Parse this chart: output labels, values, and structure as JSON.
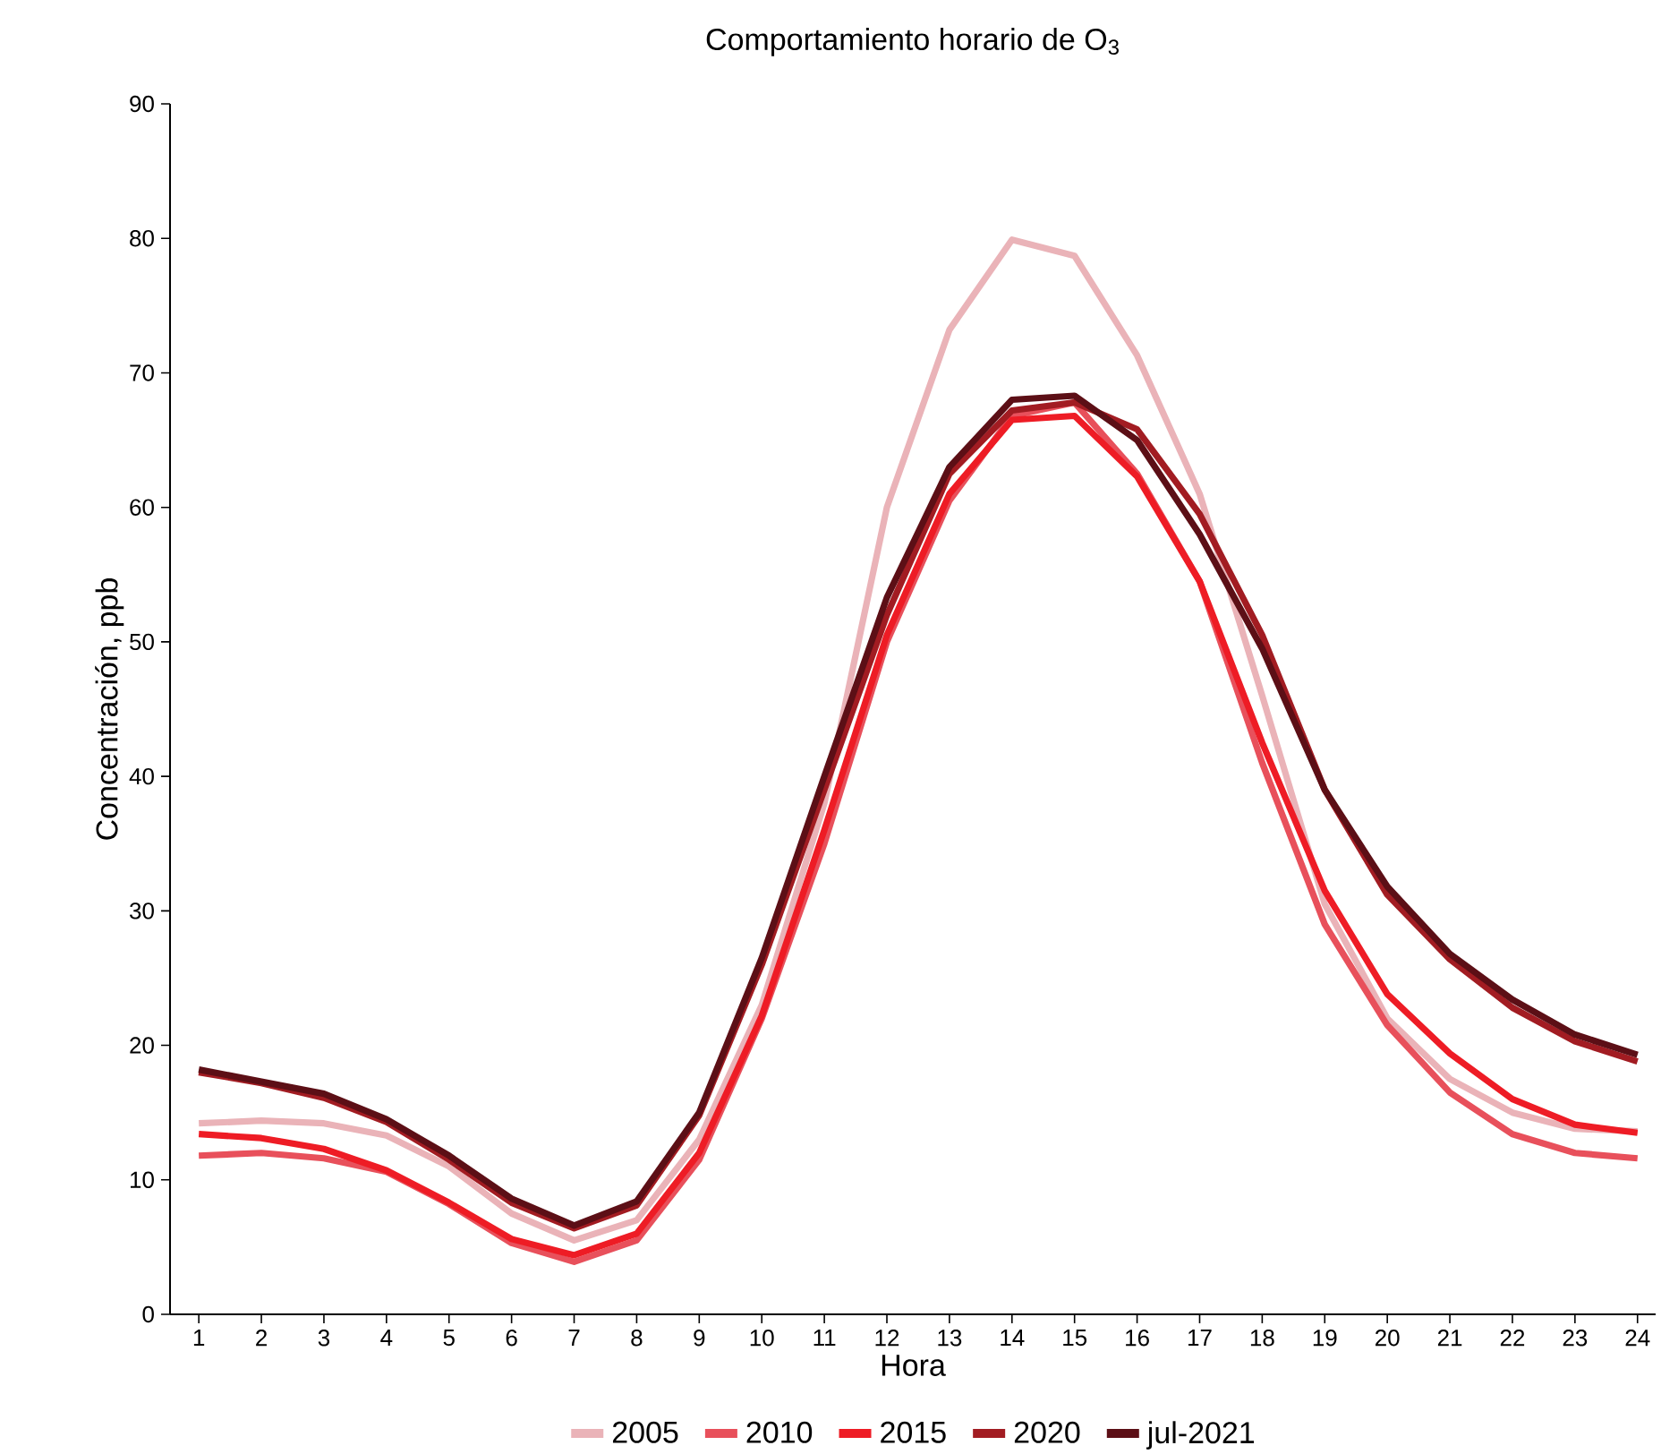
{
  "chart_data": {
    "type": "line",
    "title": "Comportamiento horario de O$_{3}$",
    "xlabel": "Hora",
    "ylabel": "Concentración, ppb",
    "categories": [
      "1",
      "2",
      "3",
      "4",
      "5",
      "6",
      "7",
      "8",
      "9",
      "10",
      "11",
      "12",
      "13",
      "14",
      "15",
      "16",
      "17",
      "18",
      "19",
      "20",
      "21",
      "22",
      "23",
      "24"
    ],
    "ylim": [
      0,
      90
    ],
    "yticks": [
      0,
      10,
      20,
      30,
      40,
      50,
      60,
      70,
      80,
      90
    ],
    "grid": false,
    "legend": "bottom",
    "marker": "none",
    "line_style": "solid",
    "series": [
      {
        "name": "2005",
        "color": "#eab3b8",
        "values": [
          14.2,
          14.4,
          14.2,
          13.3,
          11,
          7.5,
          5.5,
          7,
          13,
          23,
          38,
          60,
          73.2,
          79.9,
          78.7,
          71.3,
          61,
          46,
          30.5,
          22,
          17.5,
          15,
          13.8,
          13.6
        ]
      },
      {
        "name": "2010",
        "color": "#e8505b",
        "values": [
          11.8,
          12,
          11.6,
          10.6,
          8.2,
          5.3,
          3.9,
          5.5,
          11.5,
          22,
          35,
          50,
          60.5,
          66.8,
          67.8,
          62.5,
          54.5,
          41,
          29,
          21.5,
          16.5,
          13.4,
          12,
          11.6
        ]
      },
      {
        "name": "2015",
        "color": "#ee1c25",
        "values": [
          13.4,
          13.1,
          12.3,
          10.7,
          8.3,
          5.6,
          4.4,
          6,
          12,
          22.2,
          36,
          50.5,
          61,
          66.5,
          66.8,
          62.3,
          54.5,
          42.5,
          31.5,
          23.8,
          19.4,
          16,
          14.1,
          13.5
        ]
      },
      {
        "name": "2020",
        "color": "#a21c22",
        "values": [
          18,
          17.2,
          16.1,
          14.3,
          11.5,
          8.3,
          6.4,
          8.1,
          14.8,
          26,
          39,
          52,
          62.5,
          67.2,
          67.8,
          65.8,
          59.5,
          50.5,
          39,
          31.2,
          26.4,
          22.8,
          20.3,
          18.8
        ]
      },
      {
        "name": "jul-2021",
        "color": "#5c0f16",
        "values": [
          18.2,
          17.3,
          16.4,
          14.5,
          11.8,
          8.6,
          6.6,
          8.4,
          15,
          26.5,
          40,
          53.3,
          63,
          68,
          68.3,
          65,
          58,
          49.5,
          39,
          31.8,
          26.8,
          23.4,
          20.8,
          19.3
        ]
      }
    ]
  }
}
